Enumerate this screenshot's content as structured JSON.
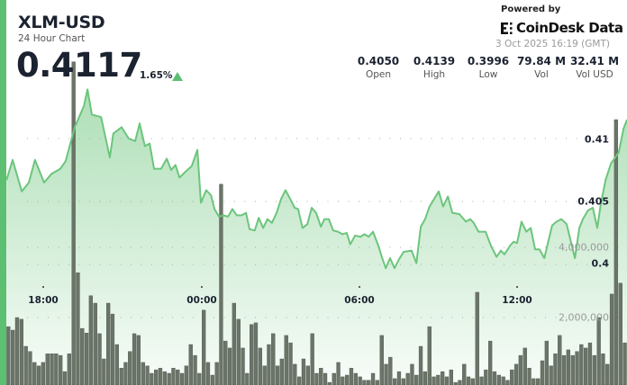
{
  "header": {
    "title": "XLM-USD",
    "subtitle": "24 Hour Chart",
    "price": "0.4117",
    "change": "1.65%",
    "change_direction": "up",
    "powered_by": "Powered by",
    "brand": "CoinDesk Data",
    "timestamp": "3 Oct 2025 16:19 (GMT)"
  },
  "stats": [
    {
      "value": "0.4050",
      "label": "Open"
    },
    {
      "value": "0.4139",
      "label": "High"
    },
    {
      "value": "0.3996",
      "label": "Low"
    },
    {
      "value": "79.84 M",
      "label": "Vol"
    },
    {
      "value": "32.41 M",
      "label": "Vol USD"
    }
  ],
  "colors": {
    "accent": "#5cbf72",
    "line": "#6cc57c",
    "volume": "#6b7468",
    "up": "#5cbf72"
  },
  "chart_data": [
    {
      "type": "area",
      "series_role": "price",
      "grid": true,
      "x_ticks": [
        "18:00",
        "00:00",
        "06:00",
        "12:00"
      ],
      "y_ticks": [
        "0.41",
        "0.405",
        "0.4"
      ],
      "ylim": [
        0.3975,
        0.4155
      ],
      "points": [
        [
          "16:36",
          0.4067
        ],
        [
          "16:50",
          0.4083
        ],
        [
          "17:11",
          0.4058
        ],
        [
          "17:27",
          0.4065
        ],
        [
          "17:41",
          0.4083
        ],
        [
          "18:02",
          0.4065
        ],
        [
          "18:19",
          0.4072
        ],
        [
          "18:39",
          0.4076
        ],
        [
          "18:51",
          0.4082
        ],
        [
          "19:12",
          0.4109
        ],
        [
          "19:33",
          0.4126
        ],
        [
          "19:41",
          0.4139
        ],
        [
          "19:51",
          0.4119
        ],
        [
          "20:12",
          0.4117
        ],
        [
          "20:32",
          0.4085
        ],
        [
          "20:40",
          0.4104
        ],
        [
          "20:59",
          0.4109
        ],
        [
          "21:15",
          0.41
        ],
        [
          "21:30",
          0.4098
        ],
        [
          "21:40",
          0.4112
        ],
        [
          "21:52",
          0.4094
        ],
        [
          "22:03",
          0.4096
        ],
        [
          "22:13",
          0.4076
        ],
        [
          "22:29",
          0.4076
        ],
        [
          "22:42",
          0.4084
        ],
        [
          "22:52",
          0.4075
        ],
        [
          "23:02",
          0.4079
        ],
        [
          "23:11",
          0.4069
        ],
        [
          "23:29",
          0.4075
        ],
        [
          "23:39",
          0.4078
        ],
        [
          "23:52",
          0.4091
        ],
        [
          "00:00",
          0.4049
        ],
        [
          "00:12",
          0.4059
        ],
        [
          "00:23",
          0.4055
        ],
        [
          "00:31",
          0.4044
        ],
        [
          "00:41",
          0.4038
        ],
        [
          "00:51",
          0.4039
        ],
        [
          "01:02",
          0.4038
        ],
        [
          "01:12",
          0.4044
        ],
        [
          "01:22",
          0.4039
        ],
        [
          "01:33",
          0.4039
        ],
        [
          "01:43",
          0.4041
        ],
        [
          "01:51",
          0.4028
        ],
        [
          "02:03",
          0.4027
        ],
        [
          "02:12",
          0.4037
        ],
        [
          "02:22",
          0.4029
        ],
        [
          "02:32",
          0.4036
        ],
        [
          "02:42",
          0.4033
        ],
        [
          "02:53",
          0.4041
        ],
        [
          "03:03",
          0.4052
        ],
        [
          "03:13",
          0.4059
        ],
        [
          "03:24",
          0.4052
        ],
        [
          "03:34",
          0.4045
        ],
        [
          "03:42",
          0.4044
        ],
        [
          "03:52",
          0.4029
        ],
        [
          "04:03",
          0.4032
        ],
        [
          "04:13",
          0.4045
        ],
        [
          "04:23",
          0.4041
        ],
        [
          "04:34",
          0.403
        ],
        [
          "04:42",
          0.4036
        ],
        [
          "04:52",
          0.4036
        ],
        [
          "05:02",
          0.4027
        ],
        [
          "05:13",
          0.4026
        ],
        [
          "05:23",
          0.4024
        ],
        [
          "05:33",
          0.4025
        ],
        [
          "05:41",
          0.4016
        ],
        [
          "05:52",
          0.4023
        ],
        [
          "06:04",
          0.4022
        ],
        [
          "06:14",
          0.4024
        ],
        [
          "06:23",
          0.4022
        ],
        [
          "06:33",
          0.4026
        ],
        [
          "06:45",
          0.4015
        ],
        [
          "06:53",
          0.4006
        ],
        [
          "07:02",
          0.3997
        ],
        [
          "07:12",
          0.4005
        ],
        [
          "07:22",
          0.3997
        ],
        [
          "07:32",
          0.4004
        ],
        [
          "07:43",
          0.401
        ],
        [
          "08:01",
          0.4011
        ],
        [
          "08:12",
          0.4001
        ],
        [
          "08:22",
          0.403
        ],
        [
          "08:32",
          0.4036
        ],
        [
          "08:42",
          0.4046
        ],
        [
          "09:03",
          0.4058
        ],
        [
          "09:13",
          0.4046
        ],
        [
          "09:24",
          0.4054
        ],
        [
          "09:34",
          0.4041
        ],
        [
          "09:50",
          0.404
        ],
        [
          "10:05",
          0.4034
        ],
        [
          "10:15",
          0.4036
        ],
        [
          "10:23",
          0.4033
        ],
        [
          "10:34",
          0.4026
        ],
        [
          "10:50",
          0.4026
        ],
        [
          "11:02",
          0.4015
        ],
        [
          "11:15",
          0.4006
        ],
        [
          "11:25",
          0.4011
        ],
        [
          "11:33",
          0.4008
        ],
        [
          "11:46",
          0.4015
        ],
        [
          "11:54",
          0.4018
        ],
        [
          "12:02",
          0.4017
        ],
        [
          "12:12",
          0.4034
        ],
        [
          "12:23",
          0.4026
        ],
        [
          "12:33",
          0.4029
        ],
        [
          "12:43",
          0.4012
        ],
        [
          "12:53",
          0.4012
        ],
        [
          "13:04",
          0.4005
        ],
        [
          "13:22",
          0.4031
        ],
        [
          "13:32",
          0.4034
        ],
        [
          "13:43",
          0.4036
        ],
        [
          "13:55",
          0.4032
        ],
        [
          "14:14",
          0.4005
        ],
        [
          "14:24",
          0.4029
        ],
        [
          "14:32",
          0.4036
        ],
        [
          "14:44",
          0.4043
        ],
        [
          "14:55",
          0.4045
        ],
        [
          "15:05",
          0.4029
        ],
        [
          "15:13",
          0.4048
        ],
        [
          "15:24",
          0.4067
        ],
        [
          "15:36",
          0.408
        ],
        [
          "15:54",
          0.4089
        ],
        [
          "16:05",
          0.4108
        ],
        [
          "16:13",
          0.4115
        ]
      ]
    },
    {
      "type": "bar",
      "series_role": "volume",
      "unit": "millions",
      "y_ticks": [
        "4,000,000",
        "2,000,000"
      ],
      "values": [
        1.74,
        1.64,
        2.0,
        1.95,
        1.18,
        1.03,
        0.72,
        0.62,
        0.72,
        0.97,
        0.97,
        0.97,
        0.92,
        0.46,
        0.97,
        9.29,
        3.28,
        1.69,
        1.56,
        2.62,
        2.41,
        1.54,
        0.82,
        2.41,
        2.1,
        1.23,
        0.56,
        0.72,
        1.03,
        1.54,
        1.49,
        0.72,
        0.62,
        0.41,
        0.51,
        0.56,
        0.46,
        0.41,
        0.56,
        0.51,
        0.41,
        0.62,
        1.23,
        0.92,
        0.41,
        2.21,
        0.72,
        0.36,
        0.72,
        5.8,
        1.33,
        1.13,
        2.41,
        1.95,
        1.13,
        0.41,
        1.8,
        1.85,
        1.13,
        0.62,
        1.23,
        1.54,
        0.62,
        0.82,
        1.49,
        1.28,
        0.67,
        0.31,
        0.82,
        0.62,
        1.54,
        0.41,
        0.56,
        0.41,
        0.15,
        0.41,
        0.72,
        0.31,
        0.36,
        0.56,
        0.41,
        0.31,
        0.21,
        0.21,
        0.41,
        0.21,
        1.49,
        0.67,
        0.87,
        0.26,
        0.46,
        0.26,
        0.41,
        0.67,
        0.36,
        1.18,
        0.46,
        1.74,
        0.31,
        0.36,
        0.46,
        0.31,
        0.51,
        0.15,
        0.21,
        0.67,
        0.31,
        0.26,
        2.72,
        0.31,
        0.51,
        1.33,
        0.46,
        0.36,
        0.31,
        0.21,
        0.51,
        0.67,
        0.92,
        1.13,
        0.56,
        0.26,
        0.26,
        0.77,
        1.33,
        0.62,
        0.97,
        1.49,
        0.92,
        1.08,
        0.92,
        1.03,
        1.23,
        1.13,
        1.28,
        0.92,
        2.0,
        0.97,
        0.67,
        2.67,
        7.64,
        2.98,
        1.28
      ]
    }
  ]
}
